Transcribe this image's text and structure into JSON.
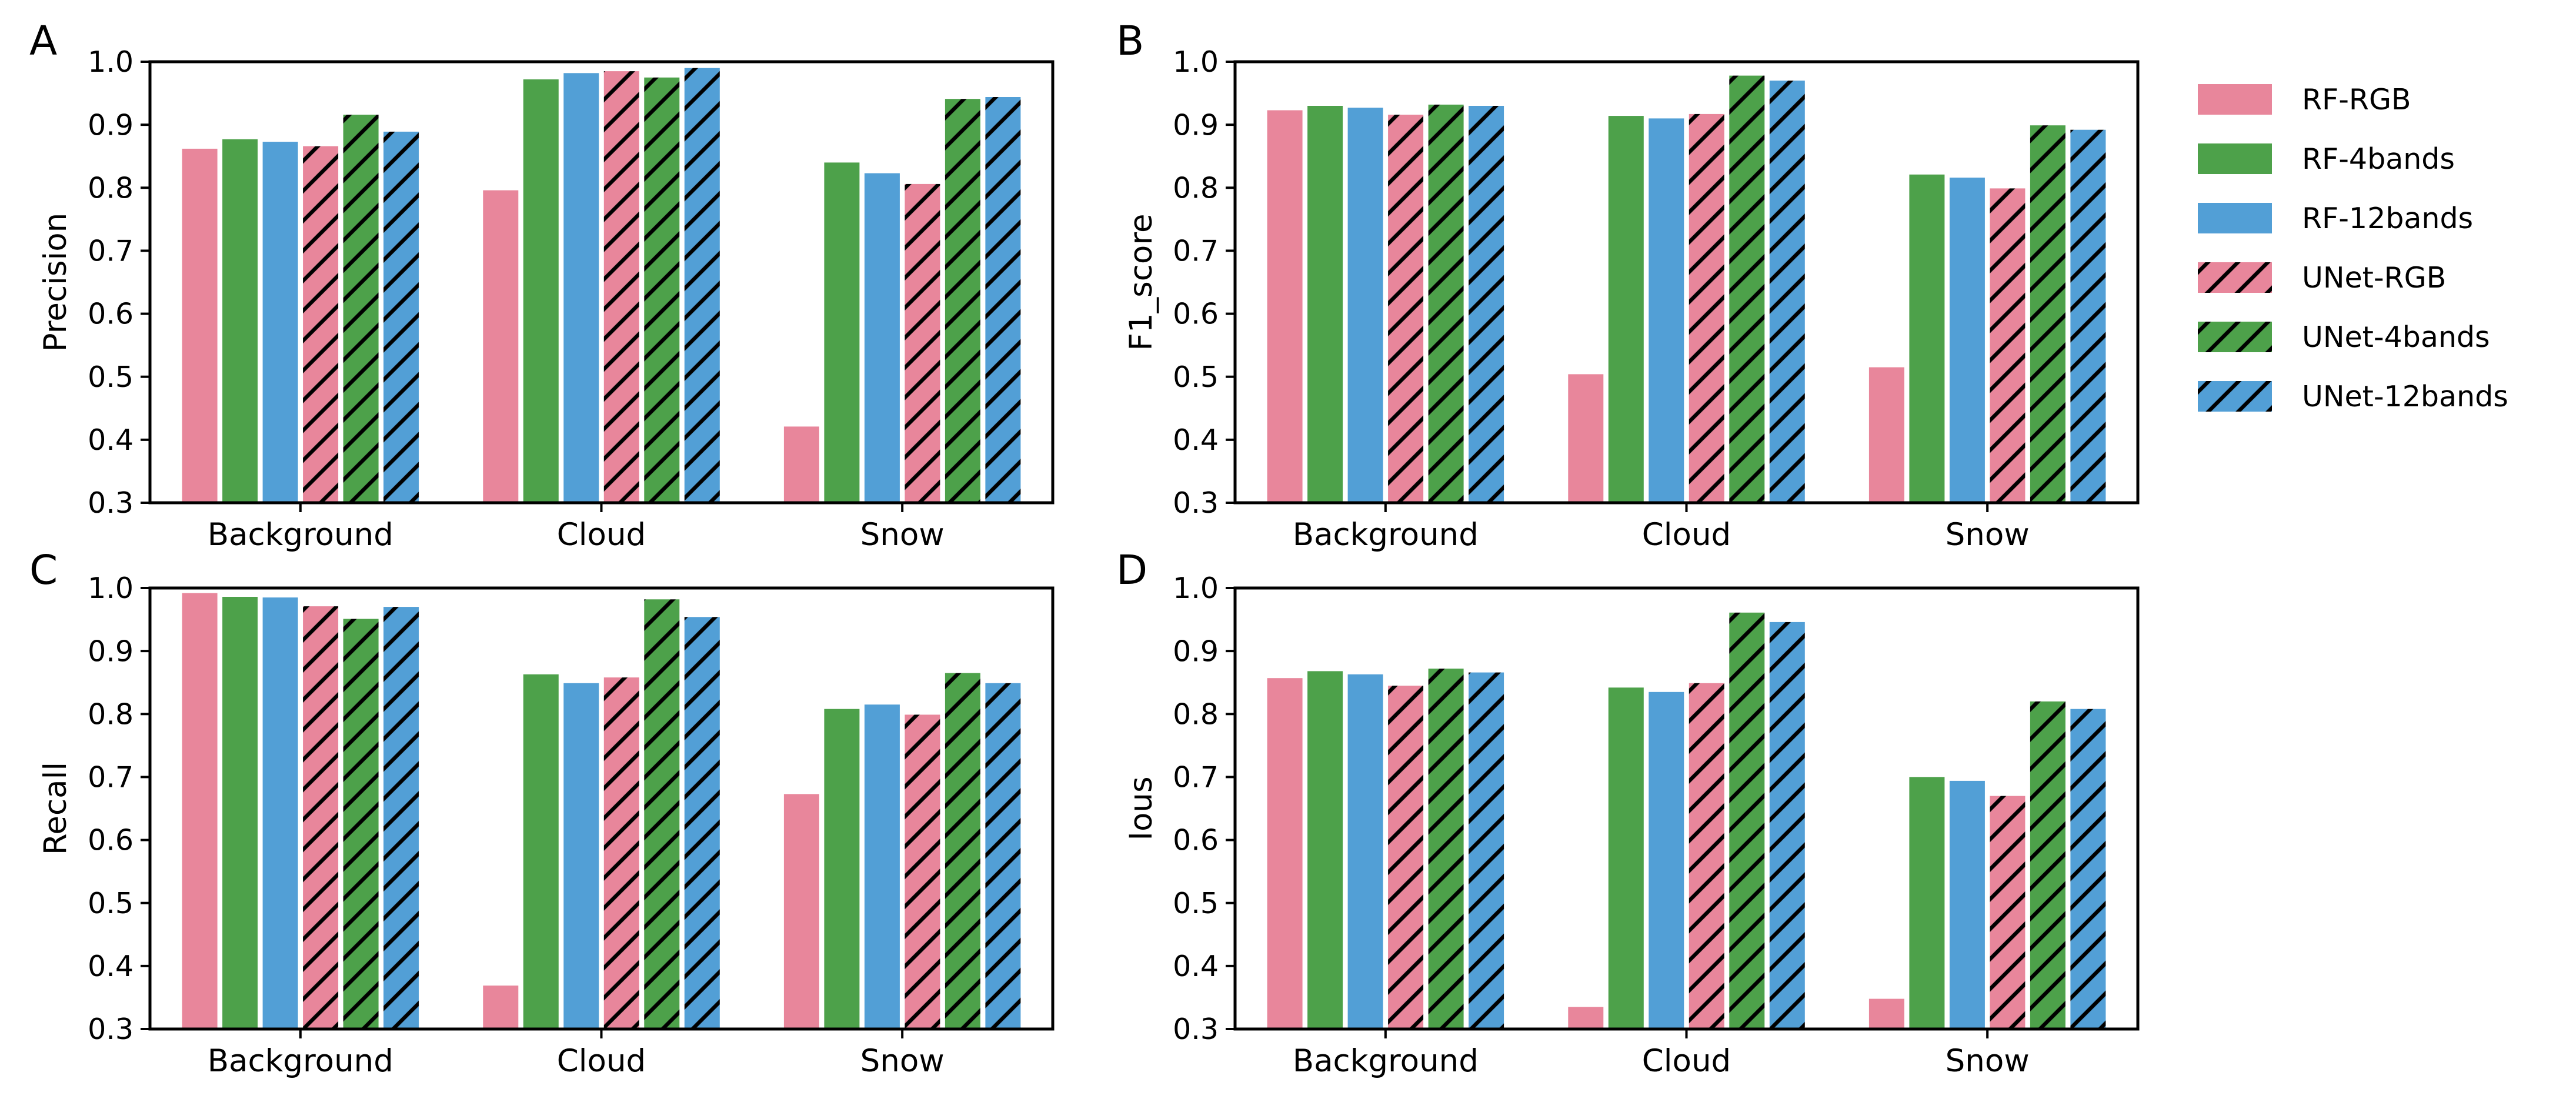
{
  "figure": {
    "background": "#ffffff"
  },
  "hatch_color": "#000000",
  "legend": {
    "position": "right",
    "entries": [
      {
        "label": "RF-RGB",
        "color": "#E8869B",
        "hatch": false
      },
      {
        "label": "RF-4bands",
        "color": "#4DA14A",
        "hatch": false
      },
      {
        "label": "RF-12bands",
        "color": "#529FD6",
        "hatch": false
      },
      {
        "label": "UNet-RGB",
        "color": "#E8869B",
        "hatch": true
      },
      {
        "label": "UNet-4bands",
        "color": "#4DA14A",
        "hatch": true
      },
      {
        "label": "UNet-12bands",
        "color": "#529FD6",
        "hatch": true
      }
    ]
  },
  "chart_data": [
    {
      "type": "bar",
      "panel_label": "A",
      "ylabel": "Precision",
      "categories": [
        "Background",
        "Cloud",
        "Snow"
      ],
      "ylim": [
        0.3,
        1.0
      ],
      "yticks": [
        0.3,
        0.4,
        0.5,
        0.6,
        0.7,
        0.8,
        0.9,
        1.0
      ],
      "grid": false,
      "series": [
        {
          "name": "RF-RGB",
          "values": [
            0.862,
            0.796,
            0.421
          ]
        },
        {
          "name": "RF-4bands",
          "values": [
            0.877,
            0.972,
            0.84
          ]
        },
        {
          "name": "RF-12bands",
          "values": [
            0.873,
            0.982,
            0.823
          ]
        },
        {
          "name": "UNet-RGB",
          "values": [
            0.866,
            0.985,
            0.806
          ]
        },
        {
          "name": "UNet-4bands",
          "values": [
            0.916,
            0.975,
            0.941
          ]
        },
        {
          "name": "UNet-12bands",
          "values": [
            0.889,
            0.99,
            0.944
          ]
        }
      ]
    },
    {
      "type": "bar",
      "panel_label": "B",
      "ylabel": "F1_score",
      "categories": [
        "Background",
        "Cloud",
        "Snow"
      ],
      "ylim": [
        0.3,
        1.0
      ],
      "yticks": [
        0.3,
        0.4,
        0.5,
        0.6,
        0.7,
        0.8,
        0.9,
        1.0
      ],
      "grid": false,
      "series": [
        {
          "name": "RF-RGB",
          "values": [
            0.923,
            0.504,
            0.515
          ]
        },
        {
          "name": "RF-4bands",
          "values": [
            0.93,
            0.914,
            0.821
          ]
        },
        {
          "name": "RF-12bands",
          "values": [
            0.927,
            0.91,
            0.816
          ]
        },
        {
          "name": "UNet-RGB",
          "values": [
            0.916,
            0.917,
            0.799
          ]
        },
        {
          "name": "UNet-4bands",
          "values": [
            0.932,
            0.978,
            0.899
          ]
        },
        {
          "name": "UNet-12bands",
          "values": [
            0.93,
            0.97,
            0.892
          ]
        }
      ]
    },
    {
      "type": "bar",
      "panel_label": "C",
      "ylabel": "Recall",
      "categories": [
        "Background",
        "Cloud",
        "Snow"
      ],
      "ylim": [
        0.3,
        1.0
      ],
      "yticks": [
        0.3,
        0.4,
        0.5,
        0.6,
        0.7,
        0.8,
        0.9,
        1.0
      ],
      "grid": false,
      "series": [
        {
          "name": "RF-RGB",
          "values": [
            0.992,
            0.369,
            0.673
          ]
        },
        {
          "name": "RF-4bands",
          "values": [
            0.986,
            0.863,
            0.808
          ]
        },
        {
          "name": "RF-12bands",
          "values": [
            0.985,
            0.849,
            0.815
          ]
        },
        {
          "name": "UNet-RGB",
          "values": [
            0.971,
            0.858,
            0.799
          ]
        },
        {
          "name": "UNet-4bands",
          "values": [
            0.951,
            0.982,
            0.865
          ]
        },
        {
          "name": "UNet-12bands",
          "values": [
            0.97,
            0.954,
            0.849
          ]
        }
      ]
    },
    {
      "type": "bar",
      "panel_label": "D",
      "ylabel": "Ious",
      "categories": [
        "Background",
        "Cloud",
        "Snow"
      ],
      "ylim": [
        0.3,
        1.0
      ],
      "yticks": [
        0.3,
        0.4,
        0.5,
        0.6,
        0.7,
        0.8,
        0.9,
        1.0
      ],
      "grid": false,
      "series": [
        {
          "name": "RF-RGB",
          "values": [
            0.857,
            0.335,
            0.348
          ]
        },
        {
          "name": "RF-4bands",
          "values": [
            0.868,
            0.842,
            0.7
          ]
        },
        {
          "name": "RF-12bands",
          "values": [
            0.863,
            0.835,
            0.694
          ]
        },
        {
          "name": "UNet-RGB",
          "values": [
            0.845,
            0.849,
            0.67
          ]
        },
        {
          "name": "UNet-4bands",
          "values": [
            0.872,
            0.961,
            0.82
          ]
        },
        {
          "name": "UNet-12bands",
          "values": [
            0.866,
            0.946,
            0.808
          ]
        }
      ]
    }
  ]
}
